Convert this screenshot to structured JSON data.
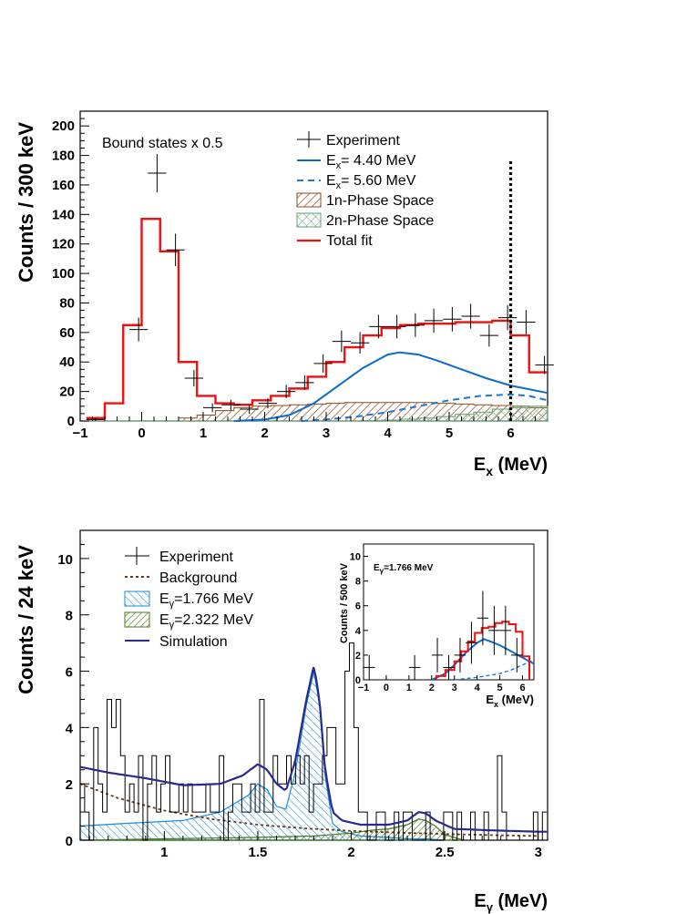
{
  "chart_data": [
    {
      "type": "histogram",
      "name": "excitation-energy",
      "xlabel": "E",
      "xlabel_sub": "x",
      "xlabel_unit": " (MeV)",
      "ylabel": "Counts / 300 keV",
      "xlim": [
        -1,
        6.6
      ],
      "ylim": [
        0,
        210
      ],
      "xticks": [
        -1,
        0,
        1,
        2,
        3,
        4,
        5,
        6
      ],
      "xtick_labels": [
        "−1",
        "0",
        "1",
        "2",
        "3",
        "4",
        "5",
        "6"
      ],
      "yticks": [
        0,
        20,
        40,
        60,
        80,
        100,
        120,
        140,
        160,
        180,
        200
      ],
      "annotation": "Bound states x 0.5",
      "threshold_line_x": 6.0,
      "legend": {
        "experiment": "Experiment",
        "e1_prefix": "E",
        "e1_sub": "x",
        "e1_suffix": "= 4.40 MeV",
        "e2_prefix": "E",
        "e2_sub": "x",
        "e2_suffix": "= 5.60 MeV",
        "ps1": "1n-Phase Space",
        "ps2": "2n-Phase Space",
        "total": "Total fit"
      },
      "colors": {
        "total": "#ee1111",
        "state1": "#0a6ccc",
        "state2": "#1a78d0",
        "ps1": "#8b4a22",
        "ps2": "#5aa070",
        "data": "#000000"
      },
      "bin_edges": [
        -0.9,
        -0.6,
        -0.3,
        0.0,
        0.3,
        0.6,
        0.9,
        1.2,
        1.5,
        1.8,
        2.1,
        2.4,
        2.7,
        3.0,
        3.3,
        3.6,
        3.9,
        4.2,
        4.5,
        4.8,
        5.1,
        5.4,
        5.7,
        6.0,
        6.3,
        6.6
      ],
      "total_fit": [
        2,
        12,
        65,
        137,
        115,
        40,
        17,
        12,
        11,
        14,
        17,
        22,
        30,
        40,
        50,
        58,
        63,
        65,
        66,
        66,
        67,
        67,
        68,
        58,
        33
      ],
      "phase_space_1n": [
        0,
        0,
        0,
        0,
        0,
        2,
        4,
        7,
        9,
        10,
        10.5,
        11,
        11.5,
        12,
        12.5,
        12.5,
        12.5,
        12.5,
        12.5,
        12,
        11.5,
        11,
        10.5,
        10,
        9
      ],
      "phase_space_2n": [
        0,
        0,
        0,
        0,
        0,
        0,
        0,
        0,
        0,
        0,
        0,
        0,
        0,
        0,
        0,
        0.2,
        0.6,
        1.2,
        2,
        3,
        4.5,
        6,
        8,
        9,
        10
      ],
      "experiment": {
        "x": [
          -0.75,
          -0.05,
          0.25,
          0.55,
          0.85,
          1.15,
          1.45,
          1.75,
          2.05,
          2.35,
          2.65,
          2.95,
          3.25,
          3.55,
          3.85,
          4.15,
          4.45,
          4.75,
          5.05,
          5.35,
          5.65,
          5.95,
          6.25,
          6.55
        ],
        "y": [
          1,
          62,
          168,
          116,
          29,
          9,
          11,
          8,
          12,
          20,
          26,
          39,
          54,
          53,
          64,
          64,
          65,
          68,
          69,
          71,
          58,
          70,
          67,
          38
        ],
        "err": [
          1,
          8,
          13,
          11,
          5.5,
          3,
          3.5,
          3,
          3.5,
          4.5,
          5,
          6.2,
          7.3,
          7.3,
          8,
          8,
          8,
          8.2,
          8.3,
          8.4,
          7.6,
          8.4,
          8.2,
          6.2
        ]
      },
      "state1_curve": {
        "x": [
          1.5,
          2.0,
          2.4,
          2.8,
          3.2,
          3.6,
          4.0,
          4.2,
          4.5,
          4.8,
          5.2,
          5.6,
          6.0,
          6.6
        ],
        "y": [
          0,
          1,
          4,
          12,
          24,
          36,
          45,
          46.5,
          45,
          41,
          35,
          29,
          24,
          19
        ]
      },
      "state2_curve": {
        "x": [
          2.6,
          3.0,
          3.5,
          4.0,
          4.5,
          5.0,
          5.5,
          6.0,
          6.3,
          6.6
        ],
        "y": [
          0,
          1,
          3,
          6,
          10,
          14,
          17,
          18,
          17,
          14
        ]
      }
    },
    {
      "type": "histogram",
      "name": "gamma-energy",
      "xlabel": "E",
      "xlabel_sub": "γ",
      "xlabel_unit": " (MeV)",
      "ylabel": "Counts / 24 keV",
      "xlim": [
        0.55,
        3.05
      ],
      "ylim": [
        0,
        11
      ],
      "xticks": [
        1,
        1.5,
        2,
        2.5,
        3
      ],
      "xtick_labels": [
        "1",
        "1.5",
        "2",
        "2.5",
        "3"
      ],
      "yticks": [
        0,
        2,
        4,
        6,
        8,
        10
      ],
      "legend": {
        "experiment": "Experiment",
        "background": "Background",
        "g1_prefix": "E",
        "g1_sub": "γ",
        "g1_suffix": "=1.766 MeV",
        "g2_prefix": "E",
        "g2_sub": "γ",
        "g2_suffix": "=2.322 MeV",
        "simulation": "Simulation"
      },
      "colors": {
        "simulation": "#2a2a8c",
        "g1": "#1a8ae0",
        "g2": "#4a7a20",
        "background": "#6b3a12",
        "data": "#000000"
      },
      "bin_start": 0.55,
      "bin_width": 0.024,
      "experiment": [
        2,
        1,
        0,
        4,
        2,
        1,
        5,
        4,
        5,
        3,
        1,
        2,
        1,
        3,
        0,
        2,
        3,
        1,
        2,
        3,
        1,
        1,
        2,
        1,
        2,
        1,
        1,
        1,
        2,
        1,
        1,
        3,
        0,
        1,
        2,
        2,
        1,
        1,
        2,
        1,
        5,
        1,
        1,
        3,
        2,
        2,
        3,
        2,
        3,
        2,
        3,
        1,
        2,
        2,
        3,
        4,
        4,
        2,
        2,
        6,
        7,
        4,
        1,
        1,
        0,
        0,
        1,
        1,
        0,
        0,
        1,
        0,
        1,
        1,
        0,
        0,
        0,
        1,
        0,
        0,
        0,
        1,
        1,
        0,
        1,
        0,
        0,
        1,
        0,
        0,
        1,
        0,
        0,
        3,
        1,
        0,
        0,
        0,
        0,
        0,
        0,
        1,
        0,
        1
      ],
      "simulation_curve": {
        "x": [
          0.55,
          0.7,
          0.9,
          1.1,
          1.3,
          1.42,
          1.5,
          1.55,
          1.6,
          1.65,
          1.7,
          1.76,
          1.8,
          1.83,
          1.86,
          1.9,
          1.95,
          2.05,
          2.2,
          2.3,
          2.36,
          2.4,
          2.45,
          2.55,
          2.75,
          3.0
        ],
        "y": [
          2.6,
          2.4,
          2.2,
          1.95,
          2.0,
          2.3,
          2.7,
          2.5,
          2.0,
          1.75,
          2.8,
          5.0,
          6.2,
          5.0,
          2.5,
          1.0,
          0.7,
          0.55,
          0.55,
          0.7,
          1.0,
          0.95,
          0.7,
          0.4,
          0.35,
          0.3
        ]
      },
      "g1_curve": {
        "x": [
          0.55,
          0.8,
          1.1,
          1.3,
          1.45,
          1.5,
          1.55,
          1.6,
          1.65,
          1.7,
          1.76,
          1.8,
          1.83,
          1.86,
          1.9,
          1.95,
          2.05,
          2.2,
          2.3,
          2.4,
          2.5
        ],
        "y": [
          0.5,
          0.6,
          0.7,
          1.0,
          1.6,
          2.0,
          1.8,
          1.2,
          1.1,
          2.4,
          4.8,
          6.0,
          4.8,
          2.3,
          0.6,
          0.3,
          0.15,
          0.1,
          0.05,
          0.05,
          0.0
        ]
      },
      "g2_curve": {
        "x": [
          0.55,
          1.0,
          1.5,
          1.8,
          2.0,
          2.1,
          2.2,
          2.3,
          2.36,
          2.4,
          2.45,
          2.5,
          2.6
        ],
        "y": [
          0.0,
          0.05,
          0.1,
          0.15,
          0.25,
          0.35,
          0.4,
          0.55,
          0.75,
          0.7,
          0.5,
          0.2,
          0.0
        ]
      },
      "background_curve": {
        "x": [
          0.55,
          0.75,
          1.0,
          1.25,
          1.5,
          1.75,
          2.0,
          2.25,
          2.5,
          2.75,
          3.0
        ],
        "y": [
          2.0,
          1.5,
          1.05,
          0.75,
          0.55,
          0.42,
          0.33,
          0.27,
          0.22,
          0.18,
          0.15
        ]
      },
      "inset": {
        "title_prefix": "E",
        "title_sub": "γ",
        "title_suffix": "=1.766 MeV",
        "ylabel": "Counts / 500 keV",
        "xlabel": "E",
        "xlabel_sub": "x",
        "xlabel_unit": " (MeV)",
        "xlim": [
          -1,
          6.5
        ],
        "ylim": [
          0,
          11
        ],
        "xticks": [
          -1,
          0,
          1,
          2,
          3,
          4,
          5,
          6
        ],
        "xtick_labels": [
          "−1",
          "0",
          "1",
          "2",
          "3",
          "4",
          "5",
          "6"
        ],
        "yticks": [
          0,
          2,
          4,
          6,
          8,
          10
        ],
        "experiment": {
          "x": [
            -0.75,
            1.25,
            2.25,
            2.75,
            3.25,
            3.75,
            4.25,
            4.75,
            5.25,
            5.75
          ],
          "y": [
            1,
            1,
            2,
            1,
            2,
            3,
            5,
            4,
            4,
            2
          ],
          "err": [
            1,
            1,
            1.4,
            1,
            1.4,
            1.7,
            2.2,
            2,
            2,
            1.4
          ]
        },
        "total_bins": {
          "edges": [
            2.2,
            2.6,
            3.0,
            3.3,
            3.6,
            3.9,
            4.2,
            4.5,
            4.8,
            5.1,
            5.4,
            5.7,
            6.0,
            6.3
          ],
          "values": [
            0.3,
            0.8,
            1.5,
            2.3,
            3.1,
            3.8,
            4.2,
            4.3,
            4.6,
            4.7,
            4.5,
            3.9,
            1.9
          ]
        },
        "state_curve": {
          "x": [
            2.0,
            2.6,
            3.0,
            3.5,
            4.0,
            4.3,
            4.6,
            5.0,
            5.5,
            6.0,
            6.5
          ],
          "y": [
            0,
            0.5,
            1.2,
            2.2,
            3.0,
            3.3,
            3.1,
            2.8,
            2.3,
            1.8,
            1.3
          ]
        },
        "state2_curve": {
          "x": [
            3.0,
            4.0,
            5.0,
            5.5,
            6.0,
            6.5
          ],
          "y": [
            0,
            0.2,
            0.5,
            0.8,
            1.2,
            1.6
          ]
        }
      }
    }
  ]
}
